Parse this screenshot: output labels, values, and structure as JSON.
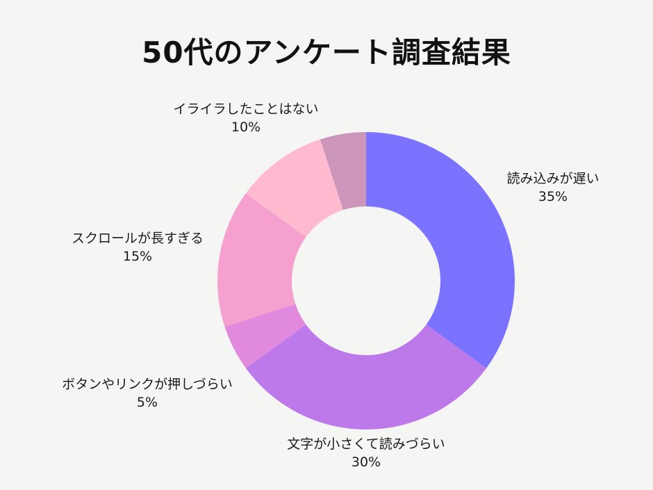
{
  "title": "50代のアンケート調査結果",
  "chart_data": {
    "type": "pie",
    "donut": true,
    "title": "50代のアンケート調査結果",
    "categories": [
      "読み込みが遅い",
      "文字が小さくて読みづらい",
      "ボタンやリンクが押しづらい",
      "スクロールが長すぎる",
      "イライラしたことはない",
      ""
    ],
    "values": [
      35,
      30,
      5,
      15,
      10,
      5
    ],
    "colors": [
      "#7b73ff",
      "#bd78ea",
      "#e089dd",
      "#f5a0cf",
      "#ffbacf",
      "#cb96ba"
    ],
    "labels": [
      {
        "name": "読み込みが遅い",
        "pct": "35%"
      },
      {
        "name": "文字が小さくて読みづらい",
        "pct": "30%"
      },
      {
        "name": "ボタンやリンクが押しづらい",
        "pct": "5%"
      },
      {
        "name": "スクロールが長すぎる",
        "pct": "15%"
      },
      {
        "name": "イライラしたことはない",
        "pct": "10%"
      }
    ],
    "legend": "none",
    "start_angle": "12 o'clock, clockwise"
  }
}
